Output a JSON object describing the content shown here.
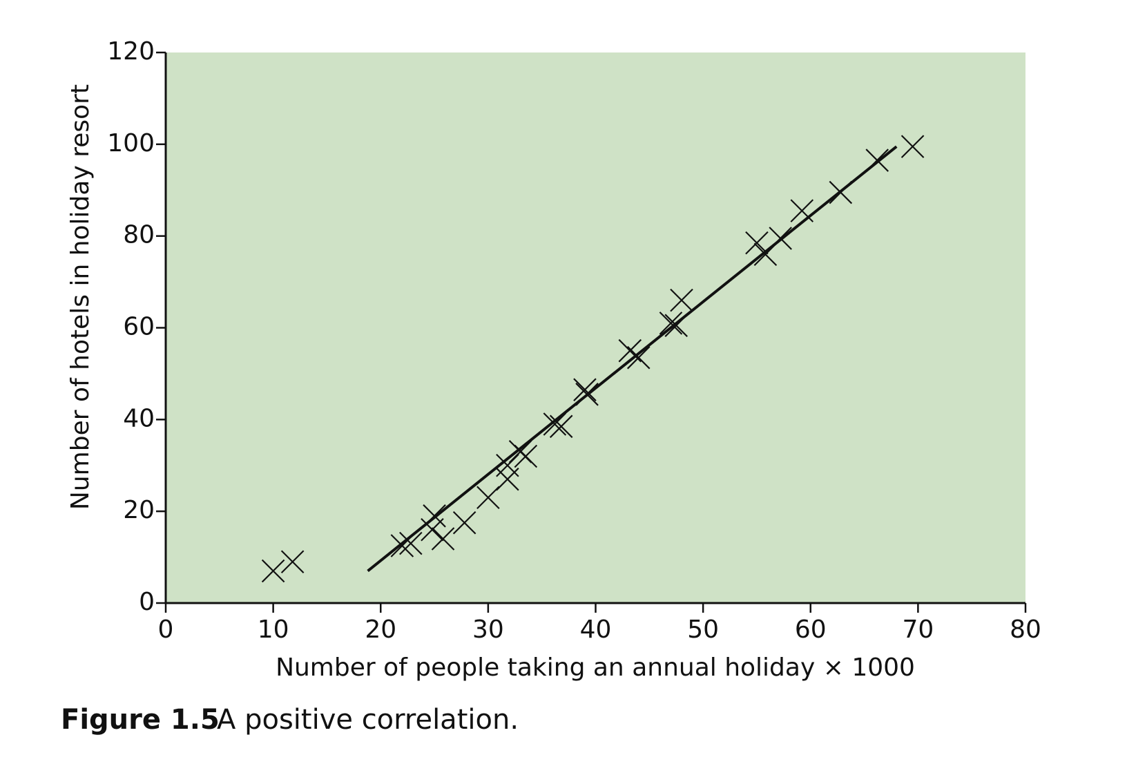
{
  "chart_data": {
    "type": "scatter",
    "xlabel": "Number of people taking an annual holiday × 1000",
    "ylabel": "Number of hotels in holiday resort",
    "caption_label": "Figure 1.5",
    "caption": "A positive correlation.",
    "x": [
      10,
      11.8,
      22,
      22.8,
      24.8,
      25,
      25.8,
      27.8,
      30,
      31.8,
      31.8,
      33,
      33.5,
      36.2,
      36.8,
      39,
      39.2,
      43.2,
      44,
      47,
      47.5,
      48,
      55,
      55.8,
      57.2,
      59.2,
      62.8,
      66.2,
      69.5
    ],
    "values": [
      7,
      9,
      12.5,
      13,
      16,
      19,
      14,
      17.5,
      23,
      27,
      30,
      33,
      32,
      39,
      38.5,
      46.5,
      45.5,
      55,
      53.5,
      61,
      60.5,
      66,
      78.5,
      76,
      79.5,
      85.5,
      89.5,
      96.5,
      99.5
    ],
    "color": "#111111",
    "trend_line": {
      "x": [
        18.8,
        68
      ],
      "values": [
        7,
        99.5
      ]
    },
    "background": "#cfe2c6",
    "xlim": [
      0,
      80
    ],
    "xticks": [
      0,
      10,
      20,
      30,
      40,
      50,
      60,
      70,
      80
    ],
    "ylim": [
      0,
      120
    ],
    "yticks": [
      0,
      20,
      40,
      60,
      80,
      100,
      120
    ]
  }
}
